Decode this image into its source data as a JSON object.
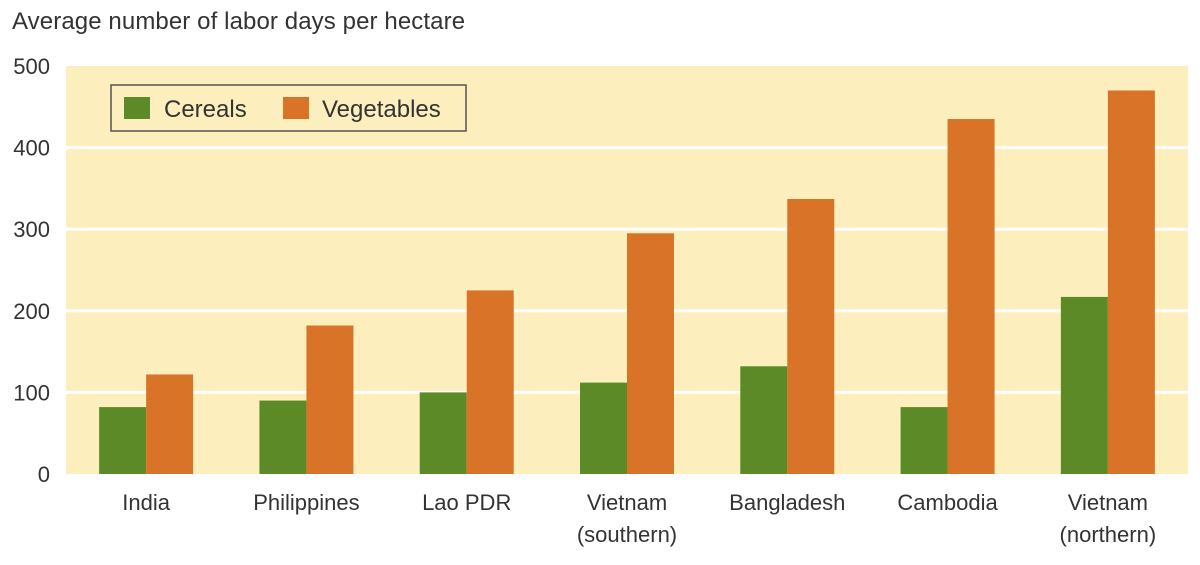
{
  "chart_data": {
    "type": "bar",
    "title": "Average number of labor days per hectare",
    "categories": [
      [
        "India"
      ],
      [
        "Philippines"
      ],
      [
        "Lao PDR"
      ],
      [
        "Vietnam",
        "(southern)"
      ],
      [
        "Bangladesh"
      ],
      [
        "Cambodia"
      ],
      [
        "Vietnam",
        "(northern)"
      ]
    ],
    "series": [
      {
        "name": "Cereals",
        "color": "#5b8a27",
        "values": [
          82,
          90,
          100,
          112,
          132,
          82,
          217
        ]
      },
      {
        "name": "Vegetables",
        "color": "#d87327",
        "values": [
          122,
          182,
          225,
          295,
          337,
          435,
          470
        ]
      }
    ],
    "ylim": [
      0,
      500
    ],
    "yticks": [
      0,
      100,
      200,
      300,
      400,
      500
    ],
    "grid": true,
    "plot_background": "#fcefbd",
    "grid_color": "#ffffff",
    "legend_placement": "top-left"
  }
}
